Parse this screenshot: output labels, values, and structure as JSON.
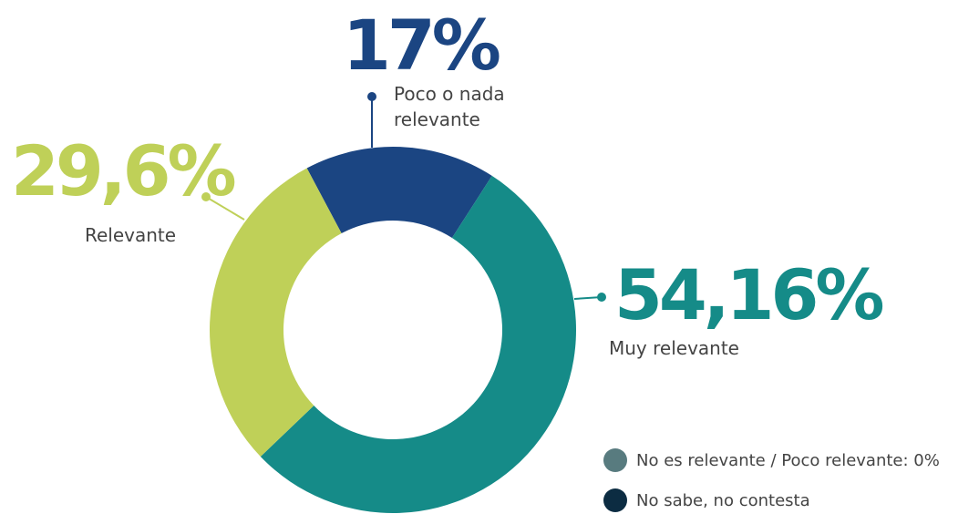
{
  "chart_data": {
    "type": "donut",
    "categories": [
      "Poco o nada relevante",
      "Muy relevante",
      "Relevante"
    ],
    "values": [
      17,
      54.16,
      29.6
    ],
    "value_labels": [
      "17%",
      "54,16%",
      "29,6%"
    ],
    "colors": [
      "#1b4582",
      "#158b88",
      "#bfd058"
    ],
    "legend": [
      {
        "label": "No es relevante / Poco relevante: 0%",
        "color": "#587b7f"
      },
      {
        "label": "No sabe, no contesta",
        "color": "#0c2c42"
      }
    ]
  }
}
